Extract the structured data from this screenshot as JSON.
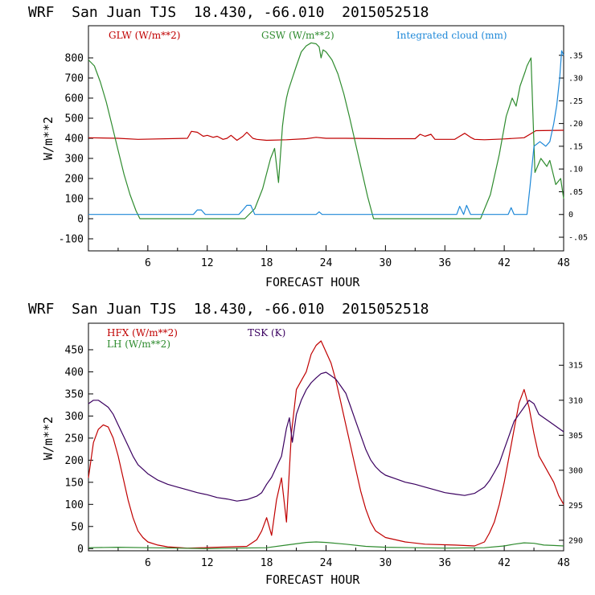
{
  "chart_data": [
    {
      "type": "line",
      "title": "WRF  San Juan TJS  18.430, -66.010  2015052518",
      "xlabel": "FORECAST HOUR",
      "ylabel": "W/m**2",
      "xlim": [
        0,
        48
      ],
      "ylim": [
        -160,
        960
      ],
      "y2lim": [
        -0.08,
        0.415
      ],
      "xticks": [
        "6",
        "12",
        "18",
        "24",
        "30",
        "36",
        "42",
        "48"
      ],
      "yticks": [
        "-100",
        "0",
        "100",
        "200",
        "300",
        "400",
        "500",
        "600",
        "700",
        "800"
      ],
      "y2ticks": [
        "-.05",
        "0",
        ".05",
        ".10",
        ".15",
        ".20",
        ".25",
        ".30",
        ".35"
      ],
      "legend_placement": "top",
      "series": [
        {
          "name": "GLW (W/m**2)",
          "color": "#c00000",
          "axis": "left",
          "x": [
            0,
            3,
            5,
            10,
            10.4,
            11,
            11.6,
            12,
            12.6,
            13,
            13.6,
            14,
            14.4,
            15,
            15.6,
            16,
            16.6,
            17,
            18,
            20,
            22,
            23,
            24,
            26,
            30,
            33,
            33.5,
            34,
            34.6,
            35,
            37,
            37.5,
            38,
            38.6,
            39,
            40,
            42,
            44,
            44.6,
            45.2,
            48
          ],
          "values": [
            403,
            400,
            395,
            400,
            435,
            430,
            410,
            415,
            405,
            410,
            395,
            400,
            415,
            390,
            410,
            430,
            400,
            395,
            390,
            393,
            398,
            405,
            400,
            400,
            398,
            398,
            420,
            410,
            420,
            395,
            395,
            410,
            425,
            405,
            395,
            393,
            397,
            403,
            420,
            438,
            440
          ]
        },
        {
          "name": "GSW (W/m**2)",
          "color": "#2e8b2e",
          "axis": "left",
          "x": [
            0,
            0.6,
            1.2,
            1.8,
            2.4,
            3,
            3.6,
            4.2,
            4.8,
            5.2,
            15.8,
            16.8,
            17.6,
            18.4,
            18.8,
            19.2,
            19.6,
            19.8,
            20,
            20.2,
            20.6,
            21,
            21.5,
            22,
            22.5,
            23,
            23.3,
            23.5,
            23.7,
            24,
            24.6,
            25.2,
            25.8,
            26.4,
            27,
            27.6,
            28.2,
            28.8,
            39.6,
            40.6,
            41.5,
            42.2,
            42.8,
            43.2,
            43.6,
            44.1,
            44.3,
            44.7,
            45.1,
            45.7,
            46.3,
            46.6,
            47.2,
            47.7,
            48
          ],
          "values": [
            790,
            760,
            680,
            580,
            460,
            340,
            220,
            120,
            40,
            0,
            0,
            50,
            150,
            300,
            350,
            180,
            460,
            540,
            600,
            640,
            700,
            760,
            830,
            860,
            875,
            870,
            855,
            800,
            840,
            830,
            790,
            720,
            620,
            500,
            370,
            240,
            110,
            0,
            0,
            120,
            320,
            510,
            600,
            560,
            660,
            730,
            760,
            800,
            230,
            300,
            260,
            290,
            170,
            200,
            100
          ]
        },
        {
          "name": "Integrated cloud (mm)",
          "color": "#1e88d8",
          "axis": "right",
          "x": [
            0,
            10.6,
            11,
            11.4,
            11.8,
            15.2,
            15.6,
            16,
            16.4,
            16.8,
            23,
            23.3,
            23.6,
            37.2,
            37.5,
            37.9,
            38.2,
            38.6,
            42.4,
            42.7,
            43,
            44.3,
            44.6,
            45,
            45.6,
            46.2,
            46.6,
            47,
            47.3,
            47.6,
            47.8,
            48
          ],
          "values": [
            0,
            0,
            0.01,
            0.01,
            0,
            0,
            0.01,
            0.02,
            0.02,
            0,
            0,
            0.006,
            0,
            0,
            0.018,
            0,
            0.02,
            0,
            0,
            0.015,
            0,
            0,
            0.06,
            0.15,
            0.16,
            0.15,
            0.16,
            0.2,
            0.24,
            0.3,
            0.36,
            0.35
          ]
        }
      ]
    },
    {
      "type": "line",
      "title": "WRF  San Juan TJS  18.430, -66.010  2015052518",
      "xlabel": "FORECAST HOUR",
      "ylabel": "W/m**2",
      "xlim": [
        0,
        48
      ],
      "ylim": [
        -5,
        510
      ],
      "y2lim": [
        288.5,
        321
      ],
      "xticks": [
        "6",
        "12",
        "18",
        "24",
        "30",
        "36",
        "42",
        "48"
      ],
      "yticks": [
        "0",
        "50",
        "100",
        "150",
        "200",
        "250",
        "300",
        "350",
        "400",
        "450"
      ],
      "y2ticks": [
        "290",
        "295",
        "300",
        "305",
        "310",
        "315"
      ],
      "legend_placement": "top",
      "series": [
        {
          "name": "HFX (W/m**2)",
          "color": "#c00000",
          "axis": "left",
          "x": [
            0,
            0.5,
            1,
            1.5,
            2,
            2.5,
            3,
            3.5,
            4,
            4.5,
            5,
            5.5,
            6,
            7,
            8,
            10,
            16,
            17,
            17.5,
            18,
            18.5,
            19,
            19.5,
            20,
            20.5,
            21,
            21.5,
            22,
            22.5,
            23,
            23.5,
            24,
            24.5,
            25,
            25.5,
            26,
            26.5,
            27,
            27.5,
            28,
            28.5,
            29,
            30,
            32,
            34,
            37,
            39,
            40,
            40.5,
            41,
            41.5,
            42,
            42.5,
            43,
            43.5,
            44,
            44.5,
            45,
            45.5,
            46,
            46.5,
            47,
            47.5,
            48
          ],
          "values": [
            160,
            240,
            270,
            280,
            275,
            250,
            210,
            160,
            110,
            70,
            40,
            25,
            15,
            8,
            4,
            1,
            5,
            20,
            40,
            70,
            30,
            110,
            160,
            60,
            260,
            360,
            380,
            400,
            440,
            460,
            470,
            445,
            420,
            380,
            330,
            280,
            230,
            180,
            130,
            90,
            60,
            40,
            25,
            15,
            10,
            8,
            6,
            15,
            35,
            60,
            100,
            150,
            210,
            270,
            330,
            360,
            320,
            260,
            210,
            190,
            170,
            150,
            120,
            100
          ]
        },
        {
          "name": "LH (W/m**2)",
          "color": "#2e8b2e",
          "axis": "left",
          "x": [
            0,
            3,
            6,
            9,
            12,
            15,
            18,
            20,
            22,
            23,
            24,
            26,
            28,
            30,
            33,
            36,
            40,
            42,
            43,
            44,
            45,
            46,
            47,
            48
          ],
          "values": [
            2,
            3,
            2,
            1,
            0,
            1,
            2,
            8,
            14,
            15,
            14,
            10,
            5,
            3,
            2,
            1,
            2,
            6,
            10,
            13,
            12,
            8,
            7,
            6
          ]
        },
        {
          "name": "TSK (K)",
          "color": "#3a0060",
          "axis": "right",
          "x": [
            0,
            0.5,
            1,
            1.5,
            2,
            2.5,
            3,
            3.5,
            4,
            4.5,
            5,
            6,
            7,
            8,
            9,
            10,
            11,
            12,
            13,
            14,
            15,
            16,
            17,
            17.5,
            18,
            18.5,
            19,
            19.5,
            20,
            20.3,
            20.6,
            21,
            21.5,
            22,
            22.5,
            23,
            23.5,
            24,
            24.5,
            25,
            25.5,
            26,
            26.5,
            27,
            27.5,
            28,
            28.5,
            29,
            29.5,
            30,
            31,
            32,
            33,
            34,
            35,
            36,
            37,
            38,
            39,
            40,
            40.5,
            41,
            41.5,
            42,
            42.5,
            43,
            43.5,
            44,
            44.5,
            45,
            45.5,
            46,
            46.5,
            47,
            47.5,
            48
          ],
          "values": [
            309.5,
            310.0,
            310.0,
            309.5,
            309.0,
            308.0,
            306.5,
            305.0,
            303.5,
            302.0,
            300.8,
            299.5,
            298.6,
            298.0,
            297.6,
            297.2,
            296.8,
            296.5,
            296.1,
            295.9,
            295.6,
            295.8,
            296.3,
            296.8,
            298.0,
            299.0,
            300.5,
            302.0,
            306.0,
            307.5,
            304.0,
            308.0,
            310.0,
            311.5,
            312.5,
            313.2,
            313.8,
            314.0,
            313.5,
            313.0,
            312.0,
            311.0,
            309.0,
            307.0,
            305.0,
            303.0,
            301.5,
            300.5,
            299.8,
            299.3,
            298.8,
            298.3,
            298.0,
            297.6,
            297.2,
            296.8,
            296.6,
            296.4,
            296.7,
            297.6,
            298.5,
            299.7,
            301.0,
            303.0,
            305.0,
            307.0,
            308.0,
            309.0,
            310.0,
            309.5,
            308.0,
            307.5,
            307.0,
            306.5,
            306.0,
            305.5
          ]
        }
      ]
    }
  ]
}
